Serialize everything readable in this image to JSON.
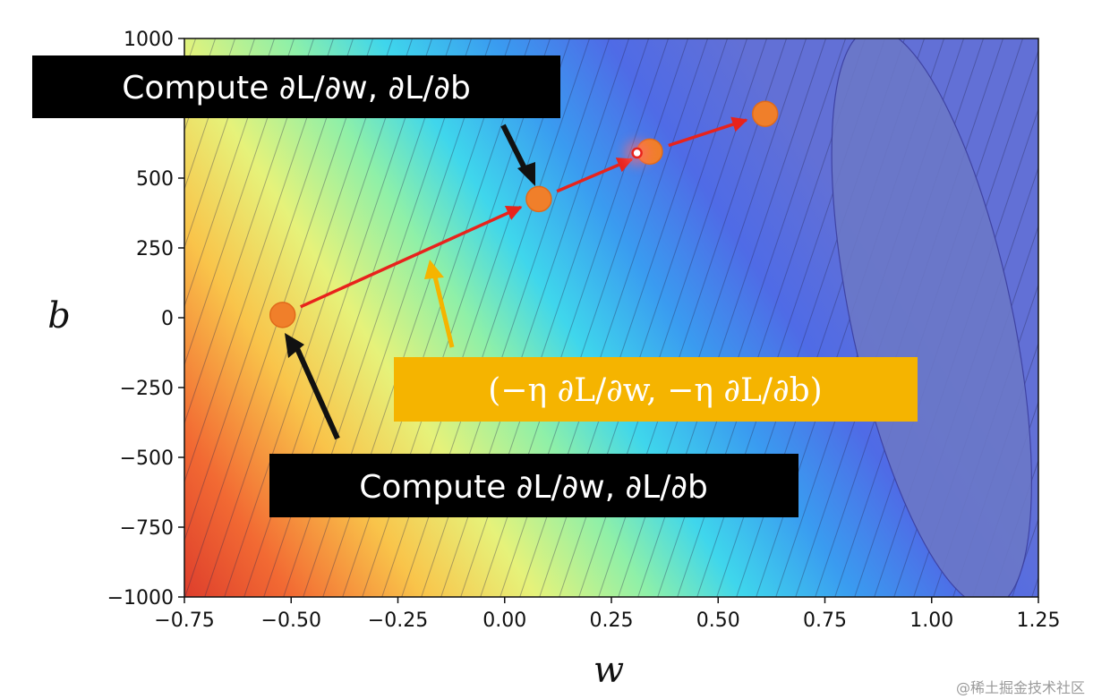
{
  "chart_data": {
    "type": "contour",
    "xlabel": "w",
    "ylabel": "b",
    "xlim": [
      -0.75,
      1.25
    ],
    "ylim": [
      -1000,
      1000
    ],
    "x_ticks": [
      -0.75,
      -0.5,
      -0.25,
      0.0,
      0.25,
      0.5,
      0.75,
      1.0,
      1.25
    ],
    "x_tick_labels": [
      "−0.75",
      "−0.50",
      "−0.25",
      "0.00",
      "0.25",
      "0.50",
      "0.75",
      "1.00",
      "1.25"
    ],
    "y_ticks": [
      1000,
      500,
      250,
      0,
      -250,
      -500,
      -750,
      -1000
    ],
    "y_tick_labels": [
      "1000",
      "500",
      "250",
      "0",
      "−250",
      "−500",
      "−750",
      "−1000"
    ],
    "colormap": "jet",
    "loss_minimum_region": {
      "w": 1.0,
      "b": 0
    },
    "path_points": [
      {
        "w": -0.52,
        "b": 10
      },
      {
        "w": 0.08,
        "b": 425
      },
      {
        "w": 0.34,
        "b": 595
      },
      {
        "w": 0.61,
        "b": 730
      }
    ],
    "highlight_point": {
      "w": 0.31,
      "b": 590,
      "color": "#e8231c"
    },
    "arrow_color": "#e8231c",
    "point_color": "#f07f2a",
    "annotations": [
      {
        "id": "callout-top",
        "text": "Compute ∂L/∂w, ∂L/∂b",
        "background": "#000000"
      },
      {
        "id": "callout-bottom",
        "text": "Compute ∂L/∂w, ∂L/∂b",
        "background": "#000000"
      },
      {
        "id": "callout-step",
        "text": "(−η ∂L/∂w, −η ∂L/∂b)",
        "background": "#f5b400"
      }
    ]
  },
  "watermark": "@稀土掘金技术社区"
}
